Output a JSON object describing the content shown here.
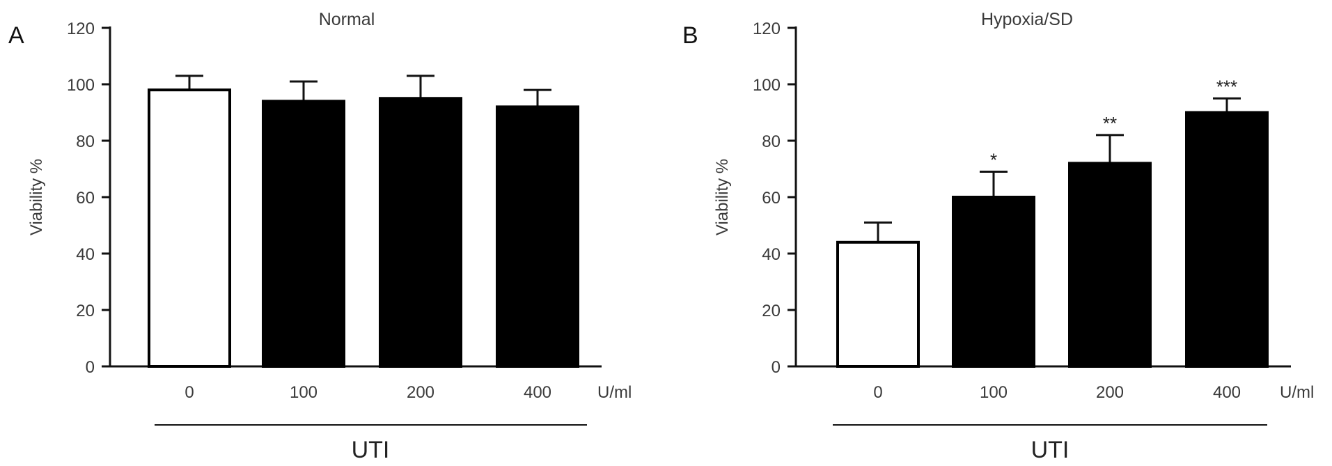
{
  "chart_data": [
    {
      "type": "bar",
      "panel": "A",
      "title": "Normal",
      "ylabel": "Viability %",
      "ylim": [
        0,
        120
      ],
      "yticks": [
        "0",
        "20",
        "40",
        "60",
        "80",
        "100",
        "120"
      ],
      "categories": [
        "0",
        "100",
        "200",
        "400"
      ],
      "unit": "U/ml",
      "group_label": "UTI",
      "values": [
        98,
        94,
        95,
        92
      ],
      "errors": [
        5,
        7,
        8,
        6
      ],
      "fills": [
        "#ffffff",
        "#000000",
        "#000000",
        "#000000"
      ],
      "significance": [
        "",
        "",
        "",
        ""
      ]
    },
    {
      "type": "bar",
      "panel": "B",
      "title": "Hypoxia/SD",
      "ylabel": "Viability %",
      "ylim": [
        0,
        120
      ],
      "yticks": [
        "0",
        "20",
        "40",
        "60",
        "80",
        "100",
        "120"
      ],
      "categories": [
        "0",
        "100",
        "200",
        "400"
      ],
      "unit": "U/ml",
      "group_label": "UTI",
      "values": [
        44,
        60,
        72,
        90
      ],
      "errors": [
        7,
        9,
        10,
        5
      ],
      "fills": [
        "#ffffff",
        "#000000",
        "#000000",
        "#000000"
      ],
      "significance": [
        "",
        "*",
        "**",
        "***"
      ]
    }
  ]
}
